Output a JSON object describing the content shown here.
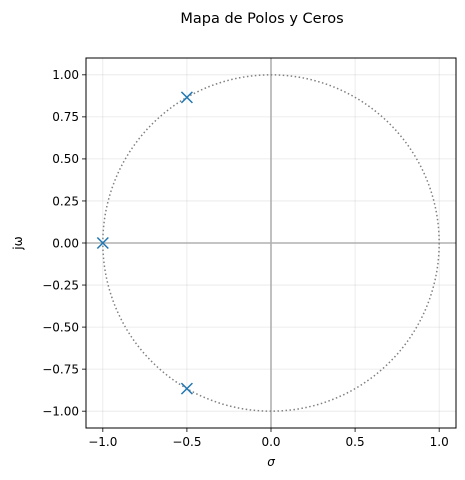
{
  "chart_data": {
    "type": "scatter",
    "title": "Mapa de Polos y Ceros",
    "xlabel": "σ",
    "ylabel": "jω",
    "xlim": [
      -1.1,
      1.1
    ],
    "ylim": [
      -1.1,
      1.1
    ],
    "grid": true,
    "x_ticks": [
      -1.0,
      -0.5,
      0.0,
      0.5,
      1.0
    ],
    "x_tick_labels": [
      "−1.0",
      "−0.5",
      "0.0",
      "0.5",
      "1.0"
    ],
    "y_ticks": [
      -1.0,
      -0.75,
      -0.5,
      -0.25,
      0.0,
      0.25,
      0.5,
      0.75,
      1.0
    ],
    "y_tick_labels": [
      "−1.00",
      "−0.75",
      "−0.50",
      "−0.25",
      "0.00",
      "0.25",
      "0.50",
      "0.75",
      "1.00"
    ],
    "unit_circle": {
      "radius": 1,
      "style": "dotted",
      "color": "#808080"
    },
    "series": [
      {
        "marker": "x",
        "color": "#1f77b4",
        "points": [
          {
            "x": -0.5,
            "y": 0.866
          },
          {
            "x": -1.0,
            "y": 0.0
          },
          {
            "x": -0.5,
            "y": -0.866
          }
        ]
      }
    ]
  }
}
